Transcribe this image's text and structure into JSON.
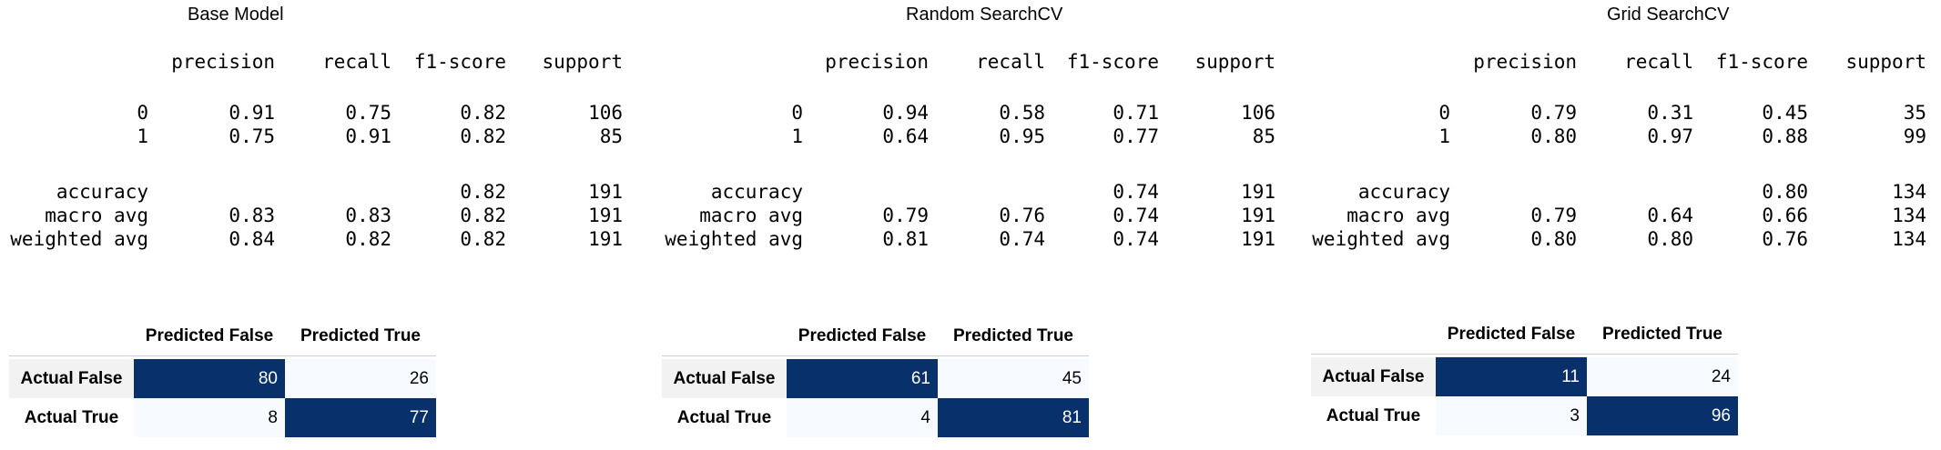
{
  "panels": [
    {
      "title": "Base Model",
      "report": {
        "headers": [
          "precision",
          "recall",
          "f1-score",
          "support"
        ],
        "rows": [
          {
            "label": "0",
            "precision": "0.91",
            "recall": "0.75",
            "f1": "0.82",
            "support": "106"
          },
          {
            "label": "1",
            "precision": "0.75",
            "recall": "0.91",
            "f1": "0.82",
            "support": "85"
          },
          {
            "label": "accuracy",
            "precision": "",
            "recall": "",
            "f1": "0.82",
            "support": "191"
          },
          {
            "label": "macro avg",
            "precision": "0.83",
            "recall": "0.83",
            "f1": "0.82",
            "support": "191"
          },
          {
            "label": "weighted avg",
            "precision": "0.84",
            "recall": "0.82",
            "f1": "0.82",
            "support": "191"
          }
        ]
      },
      "confusion": {
        "col_headers": [
          "Predicted False",
          "Predicted True"
        ],
        "row_labels": [
          "Actual False",
          "Actual True"
        ],
        "values": [
          [
            "80",
            "26"
          ],
          [
            "8",
            "77"
          ]
        ]
      }
    },
    {
      "title": "Random SearchCV",
      "report": {
        "headers": [
          "precision",
          "recall",
          "f1-score",
          "support"
        ],
        "rows": [
          {
            "label": "0",
            "precision": "0.94",
            "recall": "0.58",
            "f1": "0.71",
            "support": "106"
          },
          {
            "label": "1",
            "precision": "0.64",
            "recall": "0.95",
            "f1": "0.77",
            "support": "85"
          },
          {
            "label": "accuracy",
            "precision": "",
            "recall": "",
            "f1": "0.74",
            "support": "191"
          },
          {
            "label": "macro avg",
            "precision": "0.79",
            "recall": "0.76",
            "f1": "0.74",
            "support": "191"
          },
          {
            "label": "weighted avg",
            "precision": "0.81",
            "recall": "0.74",
            "f1": "0.74",
            "support": "191"
          }
        ]
      },
      "confusion": {
        "col_headers": [
          "Predicted False",
          "Predicted True"
        ],
        "row_labels": [
          "Actual False",
          "Actual True"
        ],
        "values": [
          [
            "61",
            "45"
          ],
          [
            "4",
            "81"
          ]
        ]
      }
    },
    {
      "title": "Grid SearchCV",
      "report": {
        "headers": [
          "precision",
          "recall",
          "f1-score",
          "support"
        ],
        "rows": [
          {
            "label": "0",
            "precision": "0.79",
            "recall": "0.31",
            "f1": "0.45",
            "support": "35"
          },
          {
            "label": "1",
            "precision": "0.80",
            "recall": "0.97",
            "f1": "0.88",
            "support": "99"
          },
          {
            "label": "accuracy",
            "precision": "",
            "recall": "",
            "f1": "0.80",
            "support": "134"
          },
          {
            "label": "macro avg",
            "precision": "0.79",
            "recall": "0.64",
            "f1": "0.66",
            "support": "134"
          },
          {
            "label": "weighted avg",
            "precision": "0.80",
            "recall": "0.80",
            "f1": "0.76",
            "support": "134"
          }
        ]
      },
      "confusion": {
        "col_headers": [
          "Predicted False",
          "Predicted True"
        ],
        "row_labels": [
          "Actual False",
          "Actual True"
        ],
        "values": [
          [
            "11",
            "24"
          ],
          [
            "3",
            "96"
          ]
        ]
      }
    }
  ],
  "colors": {
    "heatmap_dark": "#08306b",
    "heatmap_light": "#f7fbff",
    "row_label_bg": "#f2f2f2"
  }
}
